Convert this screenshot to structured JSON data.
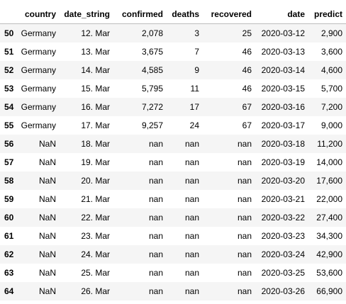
{
  "table": {
    "columns": [
      "",
      "country",
      "date_string",
      "confirmed",
      "deaths",
      "recovered",
      "date",
      "predict"
    ],
    "rows": [
      [
        "50",
        "Germany",
        "12. Mar",
        "2,078",
        "3",
        "25",
        "2020-03-12",
        "2,900"
      ],
      [
        "51",
        "Germany",
        "13. Mar",
        "3,675",
        "7",
        "46",
        "2020-03-13",
        "3,600"
      ],
      [
        "52",
        "Germany",
        "14. Mar",
        "4,585",
        "9",
        "46",
        "2020-03-14",
        "4,600"
      ],
      [
        "53",
        "Germany",
        "15. Mar",
        "5,795",
        "11",
        "46",
        "2020-03-15",
        "5,700"
      ],
      [
        "54",
        "Germany",
        "16. Mar",
        "7,272",
        "17",
        "67",
        "2020-03-16",
        "7,200"
      ],
      [
        "55",
        "Germany",
        "17. Mar",
        "9,257",
        "24",
        "67",
        "2020-03-17",
        "9,000"
      ],
      [
        "56",
        "NaN",
        "18. Mar",
        "nan",
        "nan",
        "nan",
        "2020-03-18",
        "11,200"
      ],
      [
        "57",
        "NaN",
        "19. Mar",
        "nan",
        "nan",
        "nan",
        "2020-03-19",
        "14,000"
      ],
      [
        "58",
        "NaN",
        "20. Mar",
        "nan",
        "nan",
        "nan",
        "2020-03-20",
        "17,600"
      ],
      [
        "59",
        "NaN",
        "21. Mar",
        "nan",
        "nan",
        "nan",
        "2020-03-21",
        "22,000"
      ],
      [
        "60",
        "NaN",
        "22. Mar",
        "nan",
        "nan",
        "nan",
        "2020-03-22",
        "27,400"
      ],
      [
        "61",
        "NaN",
        "23. Mar",
        "nan",
        "nan",
        "nan",
        "2020-03-23",
        "34,300"
      ],
      [
        "62",
        "NaN",
        "24. Mar",
        "nan",
        "nan",
        "nan",
        "2020-03-24",
        "42,900"
      ],
      [
        "63",
        "NaN",
        "25. Mar",
        "nan",
        "nan",
        "nan",
        "2020-03-25",
        "53,600"
      ],
      [
        "64",
        "NaN",
        "26. Mar",
        "nan",
        "nan",
        "nan",
        "2020-03-26",
        "66,900"
      ]
    ]
  }
}
